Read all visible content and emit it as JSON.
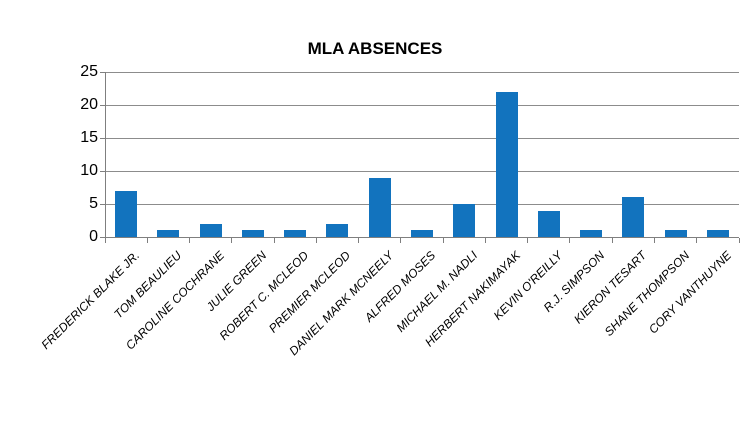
{
  "chart_data": {
    "type": "bar",
    "title": "MLA ABSENCES",
    "categories": [
      "FREDERICK BLAKE JR.",
      "TOM BEAULIEU",
      "CAROLINE COCHRANE",
      "JULIE GREEN",
      "ROBERT C. MCLEOD",
      "PREMIER MCLEOD",
      "DANIEL MARK MCNEELY",
      "ALFRED MOSES",
      "MICHAEL M. NADLI",
      "HERBERT NAKIMAYAK",
      "KEVIN O'REILLY",
      "R.J. SIMPSON",
      "KIERON TESART",
      "SHANE THOMPSON",
      "CORY VANTHUYNE"
    ],
    "values": [
      7,
      1,
      2,
      1,
      1,
      2,
      9,
      1,
      5,
      22,
      4,
      1,
      6,
      1,
      1
    ],
    "xlabel": "",
    "ylabel": "",
    "ylim": [
      0,
      25
    ],
    "yticks": [
      0,
      5,
      10,
      15,
      20,
      25
    ],
    "grid": "horizontal",
    "legend_position": "none",
    "bar_color": "#1273BE",
    "grid_color": "#8C8C8C",
    "axis_color": "#7F7F7F",
    "text_color": "#000000",
    "background_color": "#FFFFFF"
  }
}
